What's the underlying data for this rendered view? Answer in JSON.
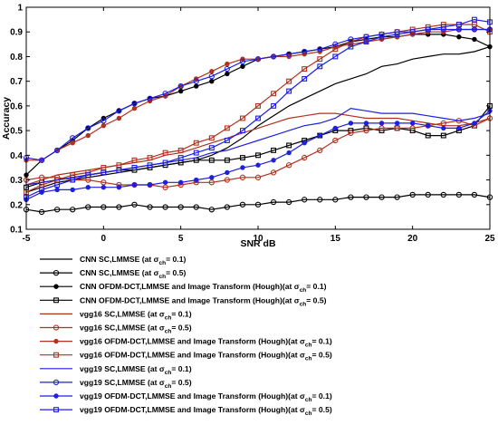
{
  "chart_data": {
    "type": "line",
    "xlabel": "SNR dB",
    "ylabel": "Accuracy",
    "xlim": [
      -5,
      25
    ],
    "ylim": [
      0.1,
      1
    ],
    "x_ticks": [
      "-5",
      "0",
      "5",
      "10",
      "15",
      "20",
      "25"
    ],
    "y_ticks": [
      "0.1",
      "0.2",
      "0.3",
      "0.4",
      "0.5",
      "0.6",
      "0.7",
      "0.8",
      "0.9",
      "1"
    ],
    "grid": false,
    "legend_position": "below",
    "x": [
      -5,
      -4,
      -3,
      -2,
      -1,
      0,
      1,
      2,
      3,
      4,
      5,
      6,
      7,
      8,
      9,
      10,
      11,
      12,
      13,
      14,
      15,
      16,
      17,
      18,
      19,
      20,
      21,
      22,
      23,
      24,
      25
    ],
    "series": [
      {
        "name": "CNN SC,LMMSE (at σ_ch= 0.1)",
        "label_main": "CNN SC,LMMSE (at σ",
        "label_end": "= 0.1)",
        "color": "#000000",
        "marker": "none",
        "values": [
          0.25,
          0.27,
          0.29,
          0.3,
          0.31,
          0.32,
          0.33,
          0.34,
          0.35,
          0.36,
          0.37,
          0.38,
          0.4,
          0.43,
          0.47,
          0.52,
          0.56,
          0.6,
          0.63,
          0.66,
          0.69,
          0.71,
          0.73,
          0.76,
          0.77,
          0.79,
          0.8,
          0.81,
          0.81,
          0.82,
          0.84
        ]
      },
      {
        "name": "CNN SC,LMMSE (at σ_ch= 0.5)",
        "label_main": "CNN SC,LMMSE (at σ",
        "label_end": "= 0.5)",
        "color": "#000000",
        "marker": "circle-open",
        "values": [
          0.18,
          0.17,
          0.18,
          0.18,
          0.19,
          0.19,
          0.19,
          0.2,
          0.19,
          0.19,
          0.19,
          0.19,
          0.18,
          0.19,
          0.2,
          0.2,
          0.21,
          0.21,
          0.22,
          0.22,
          0.22,
          0.23,
          0.23,
          0.23,
          0.23,
          0.24,
          0.24,
          0.24,
          0.24,
          0.24,
          0.23
        ]
      },
      {
        "name": "CNN OFDM-DCT,LMMSE and Image Transform (Hough)(at σ_ch= 0.1)",
        "label_main": "CNN OFDM-DCT,LMMSE and Image Transform (Hough)(at σ",
        "label_end": "= 0.1)",
        "color": "#000000",
        "marker": "dot",
        "values": [
          0.32,
          0.38,
          0.42,
          0.46,
          0.51,
          0.55,
          0.58,
          0.61,
          0.63,
          0.64,
          0.66,
          0.68,
          0.7,
          0.73,
          0.76,
          0.79,
          0.8,
          0.81,
          0.82,
          0.83,
          0.84,
          0.86,
          0.87,
          0.88,
          0.88,
          0.89,
          0.89,
          0.89,
          0.88,
          0.87,
          0.84
        ]
      },
      {
        "name": "CNN OFDM-DCT,LMMSE and Image Transform (Hough)(at σ_ch= 0.5)",
        "label_main": "CNN OFDM-DCT,LMMSE and Image Transform (Hough)(at σ",
        "label_end": "= 0.5)",
        "color": "#000000",
        "marker": "square-open",
        "values": [
          0.27,
          0.29,
          0.3,
          0.31,
          0.32,
          0.33,
          0.34,
          0.34,
          0.35,
          0.36,
          0.37,
          0.38,
          0.38,
          0.38,
          0.39,
          0.4,
          0.42,
          0.44,
          0.46,
          0.48,
          0.5,
          0.5,
          0.51,
          0.5,
          0.51,
          0.5,
          0.48,
          0.48,
          0.5,
          0.52,
          0.6
        ]
      },
      {
        "name": "vgg16 SC,LMMSE (at σ_ch= 0.1)",
        "label_main": "vgg16 SC,LMMSE (at σ",
        "label_end": "= 0.1)",
        "color": "#b0321e",
        "marker": "none",
        "values": [
          0.28,
          0.3,
          0.32,
          0.33,
          0.34,
          0.35,
          0.36,
          0.37,
          0.38,
          0.4,
          0.41,
          0.43,
          0.45,
          0.47,
          0.49,
          0.51,
          0.53,
          0.55,
          0.56,
          0.57,
          0.57,
          0.56,
          0.55,
          0.55,
          0.55,
          0.54,
          0.53,
          0.52,
          0.52,
          0.53,
          0.55
        ]
      },
      {
        "name": "vgg16 SC,LMMSE (at σ_ch= 0.5)",
        "label_main": "vgg16 SC,LMMSE (at σ",
        "label_end": "= 0.5)",
        "color": "#b0321e",
        "marker": "circle-open",
        "values": [
          0.3,
          0.31,
          0.31,
          0.3,
          0.3,
          0.29,
          0.28,
          0.28,
          0.28,
          0.27,
          0.28,
          0.29,
          0.29,
          0.3,
          0.31,
          0.31,
          0.33,
          0.36,
          0.39,
          0.42,
          0.46,
          0.49,
          0.5,
          0.51,
          0.51,
          0.51,
          0.52,
          0.53,
          0.54,
          0.52,
          0.55
        ]
      },
      {
        "name": "vgg16 OFDM-DCT,LMMSE and Image Transform (Hough)(at σ_ch= 0.1)",
        "label_main": "vgg16 OFDM-DCT,LMMSE and Image Transform (Hough)(at σ",
        "label_end": "= 0.1)",
        "color": "#b0321e",
        "marker": "dot",
        "values": [
          0.38,
          0.38,
          0.42,
          0.45,
          0.48,
          0.52,
          0.55,
          0.59,
          0.62,
          0.64,
          0.68,
          0.71,
          0.74,
          0.77,
          0.79,
          0.79,
          0.8,
          0.8,
          0.81,
          0.82,
          0.84,
          0.85,
          0.86,
          0.87,
          0.88,
          0.89,
          0.9,
          0.9,
          0.91,
          0.91,
          0.91
        ]
      },
      {
        "name": "vgg16 OFDM-DCT,LMMSE and Image Transform (Hough)(at σ_ch= 0.5)",
        "label_main": "vgg16 OFDM-DCT,LMMSE and Image Transform (Hough)(at σ",
        "label_end": "= 0.5)",
        "color": "#b0321e",
        "marker": "square-open",
        "values": [
          0.25,
          0.28,
          0.3,
          0.32,
          0.33,
          0.35,
          0.36,
          0.38,
          0.39,
          0.41,
          0.42,
          0.45,
          0.47,
          0.51,
          0.55,
          0.6,
          0.65,
          0.7,
          0.75,
          0.79,
          0.83,
          0.86,
          0.88,
          0.89,
          0.9,
          0.91,
          0.92,
          0.93,
          0.93,
          0.93,
          0.9
        ]
      },
      {
        "name": "vgg19 SC,LMMSE (at σ_ch= 0.1)",
        "label_main": "vgg19 SC,LMMSE (at σ",
        "label_end": "= 0.1)",
        "color": "#1f1fe0",
        "marker": "none",
        "values": [
          0.28,
          0.29,
          0.3,
          0.31,
          0.32,
          0.33,
          0.34,
          0.35,
          0.36,
          0.37,
          0.38,
          0.39,
          0.41,
          0.42,
          0.44,
          0.46,
          0.48,
          0.5,
          0.52,
          0.53,
          0.55,
          0.59,
          0.58,
          0.57,
          0.57,
          0.57,
          0.56,
          0.55,
          0.54,
          0.55,
          0.57
        ]
      },
      {
        "name": "vgg19 SC,LMMSE (at σ_ch= 0.5)",
        "label_main": "vgg19 SC,LMMSE (at σ",
        "label_end": "= 0.5)",
        "color": "#1f1fe0",
        "marker": "circle-open",
        "values": [
          0.39,
          0.38,
          0.42,
          0.47,
          0.51,
          0.54,
          0.58,
          0.61,
          0.63,
          0.65,
          0.68,
          0.7,
          0.72,
          0.75,
          0.78,
          0.79,
          0.8,
          0.81,
          0.82,
          0.83,
          0.85,
          0.87,
          0.88,
          0.89,
          0.9,
          0.9,
          0.91,
          0.91,
          0.91,
          0.91,
          0.91
        ]
      },
      {
        "name": "vgg19 OFDM-DCT,LMMSE and Image Transform (Hough)(at σ_ch= 0.1)",
        "label_main": "vgg19 OFDM-DCT,LMMSE and Image Transform (Hough)(at σ",
        "label_end": "= 0.1)",
        "color": "#1f1fe0",
        "marker": "dot",
        "values": [
          0.22,
          0.25,
          0.26,
          0.26,
          0.27,
          0.27,
          0.27,
          0.28,
          0.28,
          0.29,
          0.29,
          0.3,
          0.31,
          0.33,
          0.35,
          0.36,
          0.38,
          0.41,
          0.45,
          0.48,
          0.51,
          0.53,
          0.53,
          0.53,
          0.53,
          0.53,
          0.52,
          0.51,
          0.51,
          0.53,
          0.58
        ]
      },
      {
        "name": "vgg19 OFDM-DCT,LMMSE and Image Transform (Hough)(at σ_ch= 0.5)",
        "label_main": "vgg19 OFDM-DCT,LMMSE and Image Transform (Hough)(at σ",
        "label_end": "= 0.5)",
        "color": "#1f1fe0",
        "marker": "square-open",
        "values": [
          0.23,
          0.26,
          0.28,
          0.3,
          0.32,
          0.33,
          0.34,
          0.35,
          0.36,
          0.37,
          0.39,
          0.41,
          0.43,
          0.46,
          0.5,
          0.55,
          0.6,
          0.66,
          0.71,
          0.76,
          0.8,
          0.84,
          0.86,
          0.88,
          0.89,
          0.9,
          0.91,
          0.92,
          0.93,
          0.95,
          0.94
        ]
      }
    ]
  }
}
